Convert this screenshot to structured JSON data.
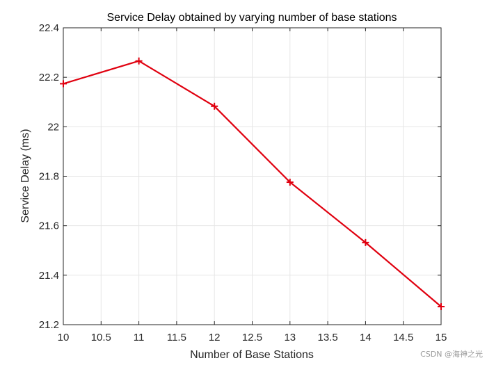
{
  "chart_data": {
    "type": "line",
    "title": "Service Delay obtained by varying number of base stations",
    "xlabel": "Number of Base Stations",
    "ylabel": "Service Delay (ms)",
    "xlim": [
      10,
      15
    ],
    "ylim": [
      21.2,
      22.4
    ],
    "xticks": [
      "10",
      "10.5",
      "11",
      "11.5",
      "12",
      "12.5",
      "13",
      "13.5",
      "14",
      "14.5",
      "15"
    ],
    "yticks": [
      "21.2",
      "21.4",
      "21.6",
      "21.8",
      "22",
      "22.2",
      "22.4"
    ],
    "grid": true,
    "series": [
      {
        "color": "#e0000f",
        "marker": "plus",
        "x": [
          10,
          11,
          12,
          13,
          14,
          15
        ],
        "y": [
          22.174,
          22.266,
          22.083,
          21.776,
          21.532,
          21.273
        ]
      }
    ]
  },
  "watermark": "CSDN @海神之光"
}
